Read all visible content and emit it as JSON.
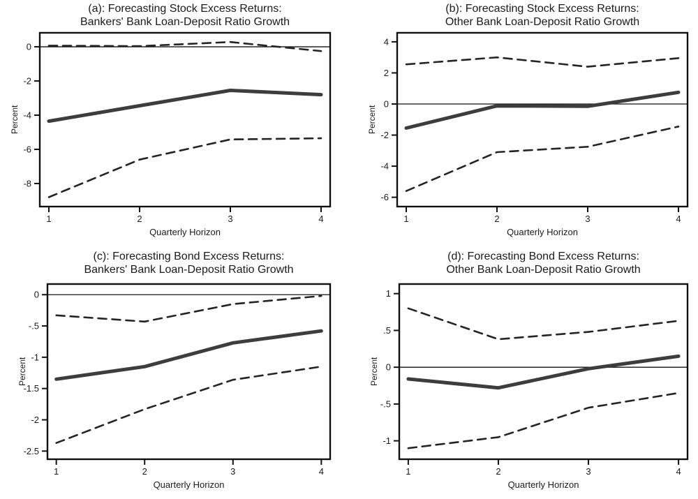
{
  "figure": {
    "description": "Four-panel forecasting figure with point estimates and dashed confidence bands",
    "background_color": "#ffffff",
    "axis_color": "#111111",
    "solid_line_color": "#3d3d3d",
    "dashed_line_color": "#242424",
    "grid": "off",
    "legend": "none"
  },
  "chart_data": [
    {
      "id": "a",
      "type": "line",
      "title_line1": "(a): Forecasting Stock Excess Returns:",
      "title_line2": "Bankers' Bank Loan-Deposit Ratio Growth",
      "xlabel": "Quarterly Horizon",
      "ylabel": "Percent",
      "x": [
        1,
        2,
        3,
        4
      ],
      "xtick_labels": [
        "1",
        "2",
        "3",
        "4"
      ],
      "xlim": [
        0.9,
        4.1
      ],
      "ylim": [
        -9.35,
        0.82
      ],
      "yticks": [
        0,
        -2,
        -4,
        -6,
        -8
      ],
      "ytick_labels": [
        "0",
        "-2",
        "-4",
        "-6",
        "-8"
      ],
      "zero_line": 0,
      "series": [
        {
          "name": "upper-confidence-band",
          "style": "dashed",
          "values": [
            0.07,
            0.04,
            0.28,
            -0.25
          ]
        },
        {
          "name": "point-estimate",
          "style": "solid",
          "values": [
            -4.35,
            -3.45,
            -2.55,
            -2.8
          ]
        },
        {
          "name": "lower-confidence-band",
          "style": "dashed",
          "values": [
            -8.8,
            -6.6,
            -5.42,
            -5.35
          ]
        }
      ]
    },
    {
      "id": "b",
      "type": "line",
      "title_line1": "(b): Forecasting Stock Excess Returns:",
      "title_line2": "Other Bank Loan-Deposit Ratio Growth",
      "xlabel": "Quarterly Horizon",
      "ylabel": "Percent",
      "x": [
        1,
        2,
        3,
        4
      ],
      "xtick_labels": [
        "1",
        "2",
        "3",
        "4"
      ],
      "xlim": [
        0.9,
        4.1
      ],
      "ylim": [
        -6.6,
        4.58
      ],
      "yticks": [
        4,
        2,
        0,
        -2,
        -4,
        -6
      ],
      "ytick_labels": [
        "4",
        "2",
        "0",
        "-2",
        "-4",
        "-6"
      ],
      "zero_line": 0,
      "series": [
        {
          "name": "upper-confidence-band",
          "style": "dashed",
          "values": [
            2.55,
            3.0,
            2.4,
            2.95
          ]
        },
        {
          "name": "point-estimate",
          "style": "solid",
          "values": [
            -1.55,
            -0.12,
            -0.15,
            0.75
          ]
        },
        {
          "name": "lower-confidence-band",
          "style": "dashed",
          "values": [
            -5.6,
            -3.1,
            -2.75,
            -1.45
          ]
        }
      ]
    },
    {
      "id": "c",
      "type": "line",
      "title_line1": "(c): Forecasting Bond Excess Returns:",
      "title_line2": "Bankers' Bank Loan-Deposit Ratio Growth",
      "xlabel": "Quarterly Horizon",
      "ylabel": "Percent",
      "x": [
        1,
        2,
        3,
        4
      ],
      "xtick_labels": [
        "1",
        "2",
        "3",
        "4"
      ],
      "xlim": [
        0.9,
        4.1
      ],
      "ylim": [
        -2.63,
        0.17
      ],
      "yticks": [
        0,
        -0.5,
        -1,
        -1.5,
        -2,
        -2.5
      ],
      "ytick_labels": [
        "0",
        "-.5",
        "-1",
        "-1.5",
        "-2",
        "-2.5"
      ],
      "zero_line": 0,
      "series": [
        {
          "name": "upper-confidence-band",
          "style": "dashed",
          "values": [
            -0.33,
            -0.43,
            -0.15,
            -0.02
          ]
        },
        {
          "name": "point-estimate",
          "style": "solid",
          "values": [
            -1.35,
            -1.15,
            -0.77,
            -0.58
          ]
        },
        {
          "name": "lower-confidence-band",
          "style": "dashed",
          "values": [
            -2.37,
            -1.83,
            -1.36,
            -1.15
          ]
        }
      ]
    },
    {
      "id": "d",
      "type": "line",
      "title_line1": "(d): Forecasting Bond Excess Returns:",
      "title_line2": "Other Bank Loan-Deposit Ratio Growth",
      "xlabel": "Quarterly Horizon",
      "ylabel": "Percent",
      "x": [
        1,
        2,
        3,
        4
      ],
      "xtick_labels": [
        "1",
        "2",
        "3",
        "4"
      ],
      "xlim": [
        0.9,
        4.1
      ],
      "ylim": [
        -1.25,
        1.13
      ],
      "yticks": [
        1,
        0.5,
        0,
        -0.5,
        -1
      ],
      "ytick_labels": [
        "1",
        ".5",
        "0",
        "-.5",
        "-1"
      ],
      "zero_line": 0,
      "series": [
        {
          "name": "upper-confidence-band",
          "style": "dashed",
          "values": [
            0.8,
            0.38,
            0.48,
            0.63
          ]
        },
        {
          "name": "point-estimate",
          "style": "solid",
          "values": [
            -0.16,
            -0.28,
            -0.02,
            0.15
          ]
        },
        {
          "name": "lower-confidence-band",
          "style": "dashed",
          "values": [
            -1.1,
            -0.95,
            -0.55,
            -0.35
          ]
        }
      ]
    }
  ]
}
